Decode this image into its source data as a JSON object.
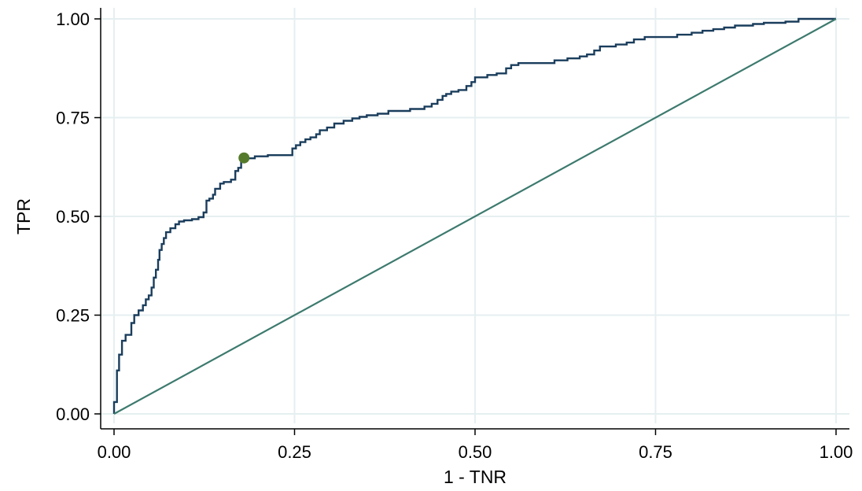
{
  "chart_data": {
    "type": "line",
    "title": "",
    "xlabel": "1 - TNR",
    "ylabel": "TPR",
    "xlim": [
      0,
      1
    ],
    "ylim": [
      0,
      1
    ],
    "xticks": [
      0,
      0.25,
      0.5,
      0.75,
      1
    ],
    "yticks": [
      0,
      0.25,
      0.5,
      0.75,
      1
    ],
    "xtick_labels": [
      "0.00",
      "0.25",
      "0.50",
      "0.75",
      "1.00"
    ],
    "ytick_labels": [
      "0.00",
      "0.25",
      "0.50",
      "0.75",
      "1.00"
    ],
    "grid": true,
    "legend": "none",
    "series": [
      {
        "kind": "step",
        "color": "#1a3d5c",
        "points": [
          [
            0.0,
            0.0
          ],
          [
            0.0,
            0.03
          ],
          [
            0.004,
            0.03
          ],
          [
            0.004,
            0.11
          ],
          [
            0.007,
            0.11
          ],
          [
            0.007,
            0.15
          ],
          [
            0.011,
            0.15
          ],
          [
            0.011,
            0.185
          ],
          [
            0.016,
            0.185
          ],
          [
            0.016,
            0.2
          ],
          [
            0.024,
            0.2
          ],
          [
            0.024,
            0.23
          ],
          [
            0.028,
            0.23
          ],
          [
            0.028,
            0.25
          ],
          [
            0.034,
            0.25
          ],
          [
            0.034,
            0.262
          ],
          [
            0.04,
            0.262
          ],
          [
            0.04,
            0.275
          ],
          [
            0.044,
            0.275
          ],
          [
            0.044,
            0.29
          ],
          [
            0.048,
            0.29
          ],
          [
            0.048,
            0.3
          ],
          [
            0.052,
            0.3
          ],
          [
            0.052,
            0.32
          ],
          [
            0.055,
            0.32
          ],
          [
            0.055,
            0.345
          ],
          [
            0.058,
            0.345
          ],
          [
            0.058,
            0.365
          ],
          [
            0.061,
            0.365
          ],
          [
            0.061,
            0.39
          ],
          [
            0.063,
            0.39
          ],
          [
            0.063,
            0.415
          ],
          [
            0.066,
            0.415
          ],
          [
            0.066,
            0.43
          ],
          [
            0.069,
            0.43
          ],
          [
            0.069,
            0.445
          ],
          [
            0.072,
            0.445
          ],
          [
            0.072,
            0.46
          ],
          [
            0.078,
            0.46
          ],
          [
            0.078,
            0.47
          ],
          [
            0.085,
            0.47
          ],
          [
            0.085,
            0.48
          ],
          [
            0.09,
            0.48
          ],
          [
            0.09,
            0.487
          ],
          [
            0.097,
            0.487
          ],
          [
            0.097,
            0.49
          ],
          [
            0.108,
            0.49
          ],
          [
            0.108,
            0.493
          ],
          [
            0.117,
            0.493
          ],
          [
            0.117,
            0.498
          ],
          [
            0.124,
            0.498
          ],
          [
            0.124,
            0.51
          ],
          [
            0.128,
            0.51
          ],
          [
            0.128,
            0.54
          ],
          [
            0.132,
            0.54
          ],
          [
            0.132,
            0.545
          ],
          [
            0.137,
            0.545
          ],
          [
            0.137,
            0.555
          ],
          [
            0.14,
            0.555
          ],
          [
            0.14,
            0.57
          ],
          [
            0.147,
            0.57
          ],
          [
            0.147,
            0.583
          ],
          [
            0.152,
            0.583
          ],
          [
            0.152,
            0.587
          ],
          [
            0.162,
            0.587
          ],
          [
            0.162,
            0.593
          ],
          [
            0.168,
            0.593
          ],
          [
            0.168,
            0.615
          ],
          [
            0.172,
            0.615
          ],
          [
            0.172,
            0.623
          ],
          [
            0.176,
            0.623
          ],
          [
            0.176,
            0.645
          ],
          [
            0.18,
            0.645
          ],
          [
            0.18,
            0.647
          ],
          [
            0.195,
            0.647
          ],
          [
            0.195,
            0.652
          ],
          [
            0.213,
            0.652
          ],
          [
            0.213,
            0.655
          ],
          [
            0.247,
            0.655
          ],
          [
            0.247,
            0.672
          ],
          [
            0.252,
            0.672
          ],
          [
            0.252,
            0.68
          ],
          [
            0.258,
            0.68
          ],
          [
            0.258,
            0.688
          ],
          [
            0.265,
            0.688
          ],
          [
            0.265,
            0.695
          ],
          [
            0.272,
            0.695
          ],
          [
            0.272,
            0.7
          ],
          [
            0.28,
            0.7
          ],
          [
            0.28,
            0.708
          ],
          [
            0.285,
            0.708
          ],
          [
            0.285,
            0.718
          ],
          [
            0.295,
            0.718
          ],
          [
            0.295,
            0.725
          ],
          [
            0.305,
            0.725
          ],
          [
            0.305,
            0.735
          ],
          [
            0.318,
            0.735
          ],
          [
            0.318,
            0.742
          ],
          [
            0.33,
            0.742
          ],
          [
            0.33,
            0.748
          ],
          [
            0.34,
            0.748
          ],
          [
            0.34,
            0.752
          ],
          [
            0.35,
            0.752
          ],
          [
            0.35,
            0.756
          ],
          [
            0.365,
            0.756
          ],
          [
            0.365,
            0.76
          ],
          [
            0.38,
            0.76
          ],
          [
            0.38,
            0.767
          ],
          [
            0.41,
            0.767
          ],
          [
            0.41,
            0.772
          ],
          [
            0.43,
            0.772
          ],
          [
            0.43,
            0.778
          ],
          [
            0.44,
            0.778
          ],
          [
            0.44,
            0.785
          ],
          [
            0.448,
            0.785
          ],
          [
            0.448,
            0.795
          ],
          [
            0.455,
            0.795
          ],
          [
            0.455,
            0.805
          ],
          [
            0.46,
            0.805
          ],
          [
            0.46,
            0.81
          ],
          [
            0.467,
            0.81
          ],
          [
            0.467,
            0.816
          ],
          [
            0.477,
            0.816
          ],
          [
            0.477,
            0.82
          ],
          [
            0.488,
            0.82
          ],
          [
            0.488,
            0.83
          ],
          [
            0.495,
            0.83
          ],
          [
            0.495,
            0.84
          ],
          [
            0.5,
            0.84
          ],
          [
            0.5,
            0.852
          ],
          [
            0.517,
            0.852
          ],
          [
            0.517,
            0.858
          ],
          [
            0.53,
            0.858
          ],
          [
            0.53,
            0.862
          ],
          [
            0.543,
            0.862
          ],
          [
            0.543,
            0.875
          ],
          [
            0.55,
            0.875
          ],
          [
            0.55,
            0.883
          ],
          [
            0.56,
            0.883
          ],
          [
            0.56,
            0.888
          ],
          [
            0.61,
            0.888
          ],
          [
            0.61,
            0.895
          ],
          [
            0.628,
            0.895
          ],
          [
            0.628,
            0.9
          ],
          [
            0.645,
            0.9
          ],
          [
            0.645,
            0.905
          ],
          [
            0.655,
            0.905
          ],
          [
            0.655,
            0.91
          ],
          [
            0.665,
            0.91
          ],
          [
            0.665,
            0.92
          ],
          [
            0.673,
            0.92
          ],
          [
            0.673,
            0.93
          ],
          [
            0.695,
            0.93
          ],
          [
            0.695,
            0.935
          ],
          [
            0.71,
            0.935
          ],
          [
            0.71,
            0.94
          ],
          [
            0.72,
            0.94
          ],
          [
            0.72,
            0.948
          ],
          [
            0.735,
            0.948
          ],
          [
            0.735,
            0.954
          ],
          [
            0.78,
            0.954
          ],
          [
            0.78,
            0.96
          ],
          [
            0.8,
            0.96
          ],
          [
            0.8,
            0.965
          ],
          [
            0.815,
            0.965
          ],
          [
            0.815,
            0.97
          ],
          [
            0.83,
            0.97
          ],
          [
            0.83,
            0.974
          ],
          [
            0.845,
            0.974
          ],
          [
            0.845,
            0.978
          ],
          [
            0.86,
            0.978
          ],
          [
            0.86,
            0.983
          ],
          [
            0.885,
            0.983
          ],
          [
            0.885,
            0.987
          ],
          [
            0.9,
            0.987
          ],
          [
            0.9,
            0.99
          ],
          [
            0.93,
            0.99
          ],
          [
            0.93,
            0.993
          ],
          [
            0.948,
            0.993
          ],
          [
            0.948,
            1.0
          ],
          [
            1.0,
            1.0
          ]
        ]
      },
      {
        "kind": "line",
        "color": "#3d7a6e",
        "points": [
          [
            0,
            0
          ],
          [
            1,
            1
          ]
        ]
      }
    ],
    "markers": [
      {
        "x": 0.18,
        "y": 0.648,
        "color": "#557a2c"
      }
    ]
  }
}
